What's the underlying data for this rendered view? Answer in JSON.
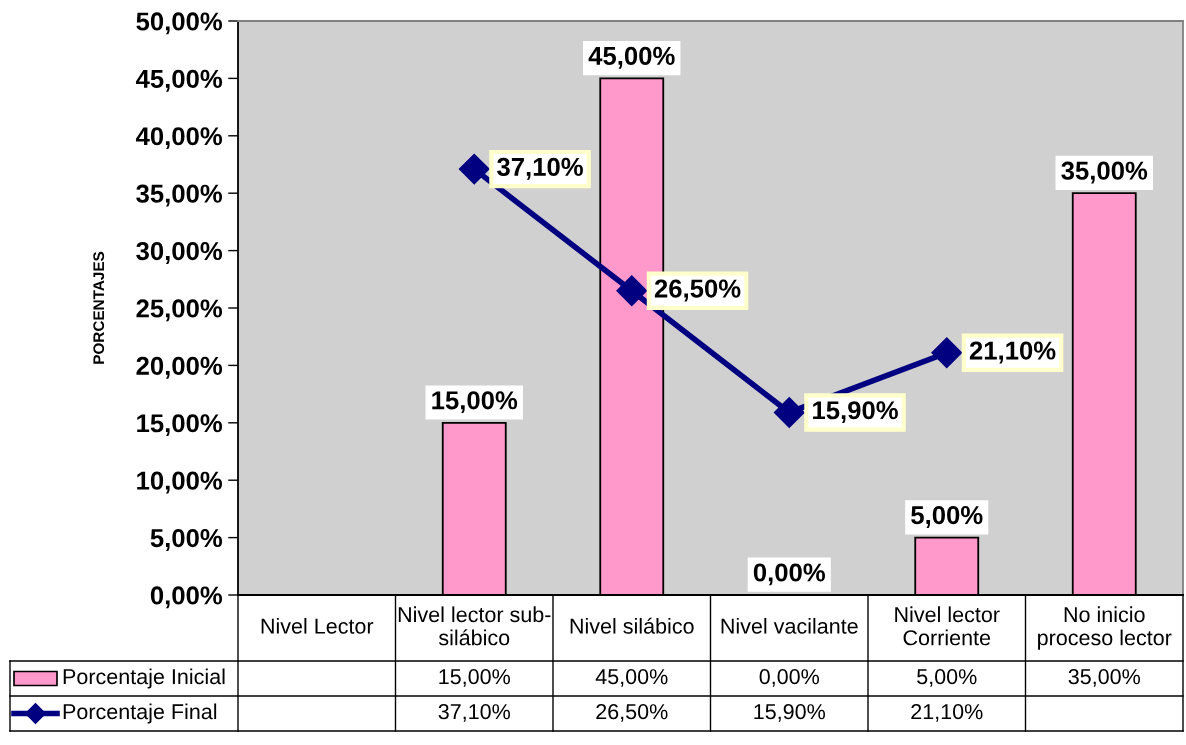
{
  "chart_data": {
    "type": "bar",
    "ylabel": "PORCENTAJES",
    "categories": [
      "Nivel Lector",
      "Nivel lector sub-silábico",
      "Nivel silábico",
      "Nivel vacilante",
      "Nivel lector Corriente",
      "No inicio proceso lector"
    ],
    "series": [
      {
        "name": "Porcentaje Inicial",
        "color": "#ff99cc",
        "values": [
          null,
          15,
          45,
          0,
          5,
          35
        ],
        "value_labels": [
          null,
          "15,00%",
          "45,00%",
          "0,00%",
          "5,00%",
          "35,00%"
        ]
      },
      {
        "name": "Porcentaje Final",
        "type": "line",
        "color": "#000080",
        "marker": "diamond",
        "values": [
          null,
          37.1,
          26.5,
          15.9,
          21.1,
          null
        ],
        "value_labels": [
          null,
          "37,10%",
          "26,50%",
          "15,90%",
          "21,10%",
          null
        ]
      }
    ],
    "ylim": [
      0,
      50
    ],
    "yticks": [
      {
        "value": 0,
        "label": "0,00%"
      },
      {
        "value": 5,
        "label": "5,00%"
      },
      {
        "value": 10,
        "label": "10,00%"
      },
      {
        "value": 15,
        "label": "15,00%"
      },
      {
        "value": 20,
        "label": "20,00%"
      },
      {
        "value": 25,
        "label": "25,00%"
      },
      {
        "value": 30,
        "label": "30,00%"
      },
      {
        "value": 35,
        "label": "35,00%"
      },
      {
        "value": 40,
        "label": "40,00%"
      },
      {
        "value": 45,
        "label": "45,00%"
      },
      {
        "value": 50,
        "label": "50,00%"
      }
    ],
    "legend": "bottom"
  }
}
